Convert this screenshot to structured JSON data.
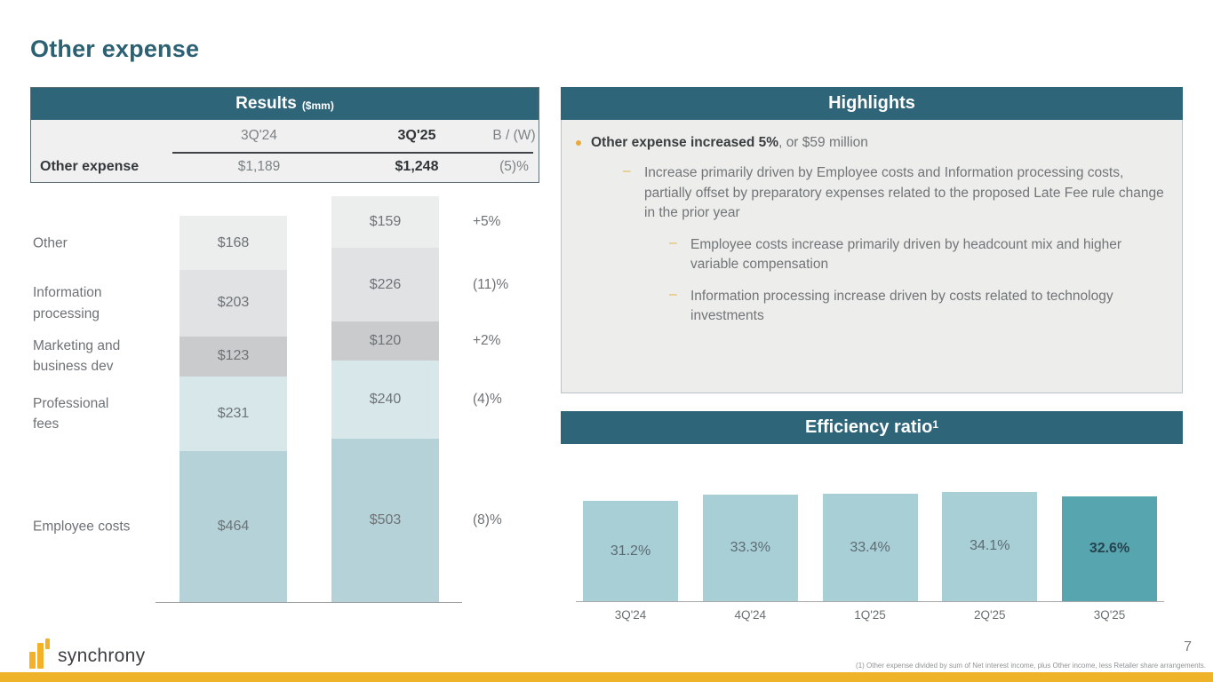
{
  "page": {
    "title": "Other expense",
    "page_number": "7",
    "footnote": "(1) Other expense divided by sum of Net interest income, plus Other income, less Retailer share arrangements.",
    "brand": "synchrony"
  },
  "colors": {
    "header_teal": "#2f6579",
    "accent_gold": "#efb32a",
    "panel_gray": "#ededeb",
    "title_teal": "#2c6173"
  },
  "results_table": {
    "header": "Results",
    "header_unit": "($mm)",
    "columns": [
      "3Q'24",
      "3Q'25",
      "B / (W)"
    ],
    "rows": [
      {
        "label": "Other expense",
        "values": [
          "$1,189",
          "$1,248",
          "(5)%"
        ]
      }
    ]
  },
  "highlights": {
    "header": "Highlights",
    "bullet_bold": "Other expense increased 5%",
    "bullet_rest": ", or $59 million",
    "sub_bullets": [
      {
        "level": 1,
        "text": "Increase primarily driven by Employee costs and Information processing costs, partially offset by preparatory expenses related to the proposed Late Fee rule change in the prior year"
      },
      {
        "level": 2,
        "text": "Employee costs increase primarily driven by headcount mix and higher variable compensation"
      },
      {
        "level": 2,
        "text": "Information processing increase driven by costs related to technology investments"
      }
    ]
  },
  "efficiency": {
    "header": "Efficiency ratio",
    "superscript": "1"
  },
  "chart_data": [
    {
      "type": "bar",
      "subtype": "stacked",
      "unit": "$mm",
      "categories": [
        "3Q'24",
        "3Q'25"
      ],
      "totals": [
        1189,
        1248
      ],
      "series": [
        {
          "name": "Other",
          "display": "Other",
          "values": [
            168,
            159
          ],
          "labels": [
            "$168",
            "$159"
          ],
          "change": "+5%",
          "color": "#eceded"
        },
        {
          "name": "Information processing",
          "display": "Information\nprocessing",
          "values": [
            203,
            226
          ],
          "labels": [
            "$203",
            "$226"
          ],
          "change": "(11)%",
          "color": "#e0e2e3"
        },
        {
          "name": "Marketing and business dev",
          "display": "Marketing and\nbusiness dev",
          "values": [
            123,
            120
          ],
          "labels": [
            "$123",
            "$120"
          ],
          "change": "+2%",
          "color": "#c9cbcc"
        },
        {
          "name": "Professional fees",
          "display": "Professional\nfees",
          "values": [
            231,
            240
          ],
          "labels": [
            "$231",
            "$240"
          ],
          "change": "(4)%",
          "color": "#d8e8ea"
        },
        {
          "name": "Employee costs",
          "display": "Employee costs",
          "values": [
            464,
            503
          ],
          "labels": [
            "$464",
            "$503"
          ],
          "change": "(8)%",
          "color": "#b4d2d8"
        }
      ]
    },
    {
      "type": "bar",
      "title": "Efficiency ratio",
      "categories": [
        "3Q'24",
        "4Q'24",
        "1Q'25",
        "2Q'25",
        "3Q'25"
      ],
      "values": [
        31.2,
        33.3,
        33.4,
        34.1,
        32.6
      ],
      "labels": [
        "31.2%",
        "33.3%",
        "33.4%",
        "34.1%",
        "32.6%"
      ],
      "highlight_index": 4,
      "bar_color": "#a9cfd6",
      "highlight_color": "#57a5ae"
    }
  ]
}
